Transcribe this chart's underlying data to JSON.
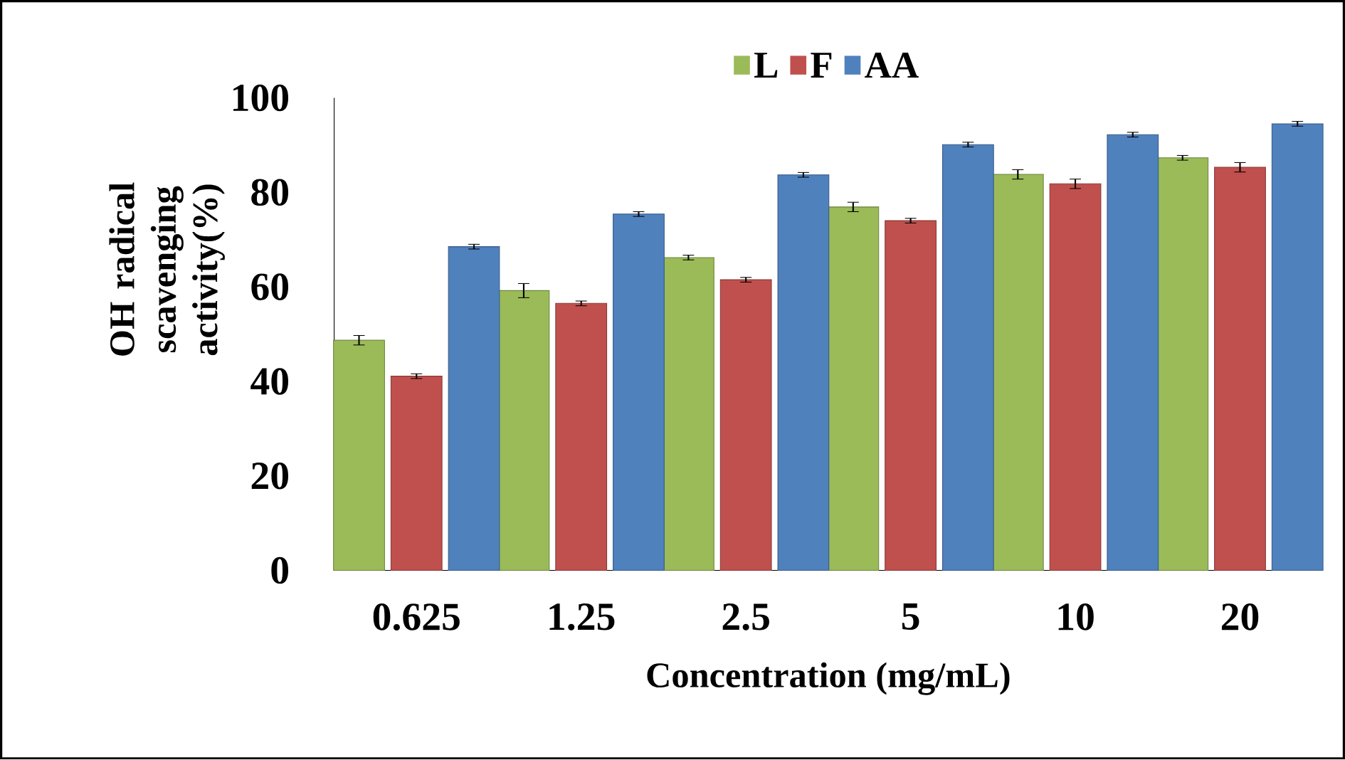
{
  "chart_data": {
    "type": "bar",
    "xlabel": "Concentration (mg/mL)",
    "ylabel": "OH radical scavenging activity(%)",
    "categories": [
      "0.625",
      "1.25",
      "2.5",
      "5",
      "10",
      "20"
    ],
    "series": [
      {
        "name": "L",
        "color": "#9bbb59",
        "values": [
          48.7,
          59.2,
          66.2,
          76.9,
          83.8,
          87.3
        ],
        "errors": [
          1,
          1.5,
          0.5,
          1,
          1,
          0.5
        ]
      },
      {
        "name": "F",
        "color": "#c0504d",
        "values": [
          41.1,
          56.5,
          61.5,
          74.0,
          81.8,
          85.3
        ],
        "errors": [
          0.5,
          0.5,
          0.5,
          0.5,
          1,
          1
        ]
      },
      {
        "name": "AA",
        "color": "#4f81bd",
        "values": [
          68.5,
          75.4,
          83.7,
          90.1,
          92.2,
          94.5
        ],
        "errors": [
          0.5,
          0.5,
          0.5,
          0.5,
          0.5,
          0.5
        ]
      }
    ],
    "ylim": [
      0,
      100
    ],
    "yticks": [
      0,
      20,
      40,
      60,
      80,
      100
    ],
    "legend": "top",
    "grid": false
  }
}
